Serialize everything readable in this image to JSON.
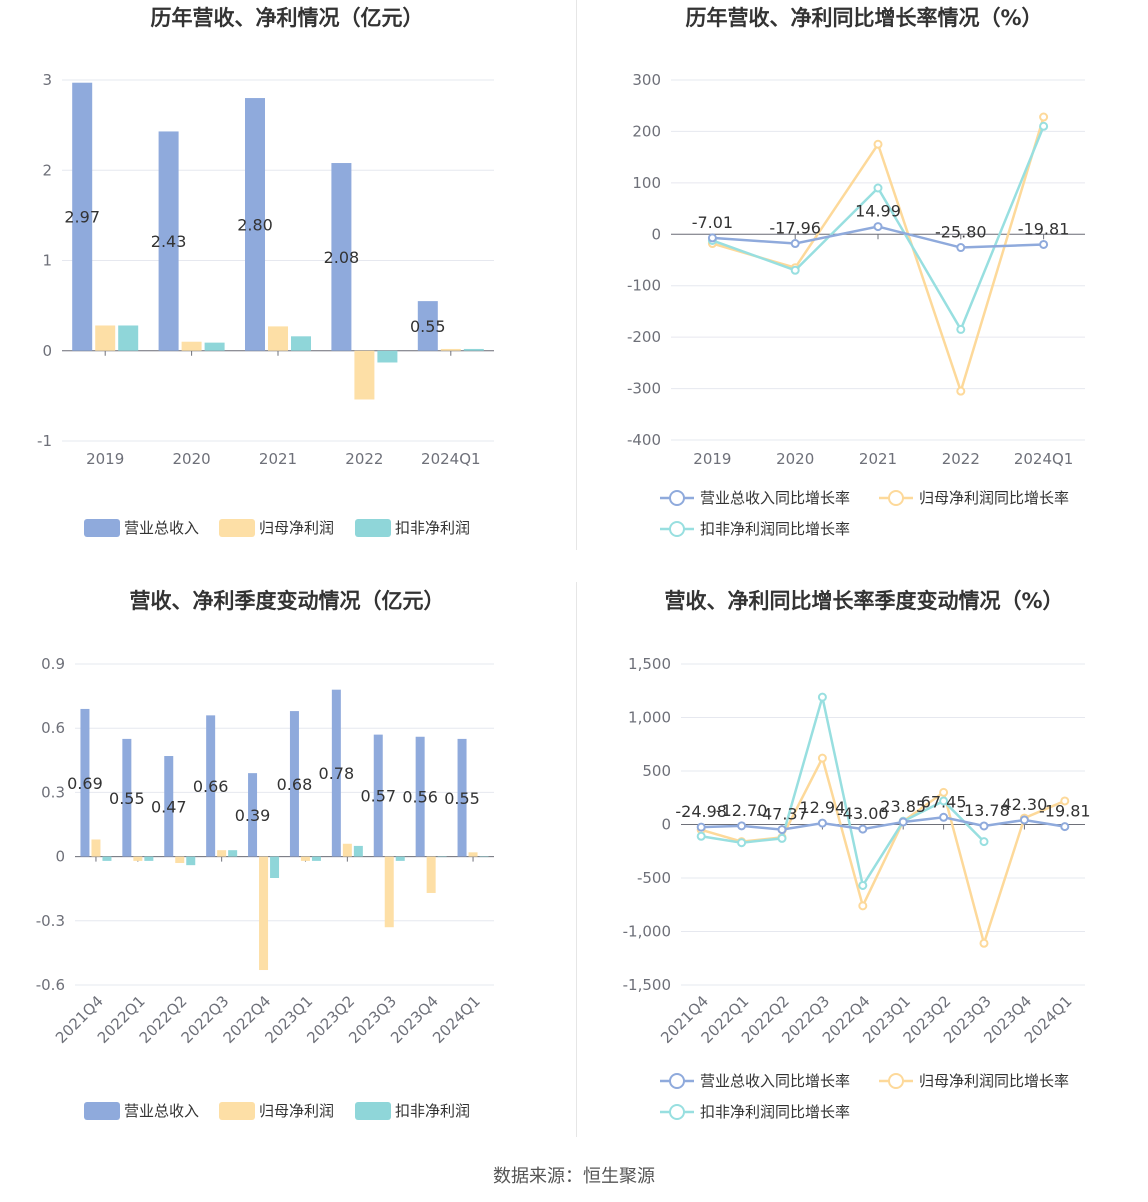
{
  "source": "数据来源：恒生聚源",
  "colors": {
    "revenue": "#8faadc",
    "parent_profit": "#fddfa6",
    "deducted_profit": "#8fd6d9",
    "rev_line": "#8faadc",
    "parent_line": "#fdd99a",
    "deducted_line": "#98dfe0"
  },
  "chart_data": [
    {
      "id": "annual_amount",
      "type": "bar",
      "title": "历年营收、净利情况（亿元）",
      "categories": [
        "2019",
        "2020",
        "2021",
        "2022",
        "2024Q1"
      ],
      "ylim": [
        -1,
        3
      ],
      "yticks": [
        "-1",
        "0",
        "1",
        "2",
        "3"
      ],
      "ytick_values": [
        -1,
        0,
        1,
        2,
        3
      ],
      "series": [
        {
          "name": "营业总收入",
          "values": [
            2.97,
            2.43,
            2.8,
            2.08,
            0.55
          ],
          "labels": [
            "2.97",
            "2.43",
            "2.80",
            "2.08",
            "0.55"
          ]
        },
        {
          "name": "归母净利润",
          "values": [
            0.28,
            0.1,
            0.27,
            -0.54,
            0.02
          ]
        },
        {
          "name": "扣非净利润",
          "values": [
            0.28,
            0.09,
            0.16,
            -0.13,
            0.02
          ]
        }
      ],
      "grid": true,
      "legend": "bottom"
    },
    {
      "id": "annual_growth",
      "type": "line",
      "title": "历年营收、净利同比增长率情况（%）",
      "categories": [
        "2019",
        "2020",
        "2021",
        "2022",
        "2024Q1"
      ],
      "ylim": [
        -400,
        300
      ],
      "yticks": [
        "-400",
        "-300",
        "-200",
        "-100",
        "0",
        "100",
        "200",
        "300"
      ],
      "ytick_values": [
        -400,
        -300,
        -200,
        -100,
        0,
        100,
        200,
        300
      ],
      "series": [
        {
          "name": "营业总收入同比增长率",
          "values": [
            -7.01,
            -17.96,
            14.99,
            -25.8,
            -19.81
          ],
          "labels": [
            "-7.01",
            "-17.96",
            "14.99",
            "-25.80",
            "-19.81"
          ]
        },
        {
          "name": "归母净利润同比增长率",
          "values": [
            -18,
            -65,
            175,
            -305,
            228
          ]
        },
        {
          "name": "扣非净利润同比增长率",
          "values": [
            -12,
            -70,
            90,
            -185,
            210
          ]
        }
      ],
      "grid": true,
      "legend": "bottom"
    },
    {
      "id": "quarterly_amount",
      "type": "bar",
      "title": "营收、净利季度变动情况（亿元）",
      "categories": [
        "2021Q4",
        "2022Q1",
        "2022Q2",
        "2022Q3",
        "2022Q4",
        "2023Q1",
        "2023Q2",
        "2023Q3",
        "2023Q4",
        "2024Q1"
      ],
      "ylim": [
        -0.6,
        0.9
      ],
      "yticks": [
        "-0.6",
        "-0.3",
        "0",
        "0.3",
        "0.6",
        "0.9"
      ],
      "ytick_values": [
        -0.6,
        -0.3,
        0,
        0.3,
        0.6,
        0.9
      ],
      "series": [
        {
          "name": "营业总收入",
          "values": [
            0.69,
            0.55,
            0.47,
            0.66,
            0.39,
            0.68,
            0.78,
            0.57,
            0.56,
            0.55
          ],
          "labels": [
            "0.69",
            "0.55",
            "0.47",
            "0.66",
            "0.39",
            "0.68",
            "0.78",
            "0.57",
            "0.56",
            "0.55"
          ]
        },
        {
          "name": "归母净利润",
          "values": [
            0.08,
            -0.02,
            -0.03,
            0.03,
            -0.53,
            -0.02,
            0.06,
            -0.33,
            -0.17,
            0.02
          ]
        },
        {
          "name": "扣非净利润",
          "values": [
            -0.02,
            -0.02,
            -0.04,
            0.03,
            -0.1,
            -0.02,
            0.05,
            -0.02,
            0.0,
            0.0
          ]
        }
      ],
      "grid": true,
      "legend": "bottom"
    },
    {
      "id": "quarterly_growth",
      "type": "line",
      "title": "营收、净利同比增长率季度变动情况（%）",
      "categories": [
        "2021Q4",
        "2022Q1",
        "2022Q2",
        "2022Q3",
        "2022Q4",
        "2023Q1",
        "2023Q2",
        "2023Q3",
        "2023Q4",
        "2024Q1"
      ],
      "ylim": [
        -1500,
        1500
      ],
      "yticks": [
        "-1,500",
        "-1,000",
        "-500",
        "0",
        "500",
        "1,000",
        "1,500"
      ],
      "ytick_values": [
        -1500,
        -1000,
        -500,
        0,
        500,
        1000,
        1500
      ],
      "series": [
        {
          "name": "营业总收入同比增长率",
          "values": [
            -24.98,
            -12.7,
            -47.37,
            12.94,
            -43.0,
            23.85,
            67.45,
            -13.78,
            42.3,
            -19.81
          ],
          "labels": [
            "-24.98",
            "-12.70",
            "-47.37",
            "12.94",
            "-43.00",
            "23.85",
            "67.45",
            "-13.78",
            "42.30",
            "-19.81"
          ]
        },
        {
          "name": "归母净利润同比增长率",
          "values": [
            -50,
            -160,
            -120,
            620,
            -760,
            30,
            300,
            -1110,
            60,
            220
          ]
        },
        {
          "name": "扣非净利润同比增长率",
          "values": [
            -110,
            -170,
            -130,
            1190,
            -570,
            30,
            220,
            -160,
            null,
            null
          ]
        }
      ],
      "grid": true,
      "legend": "bottom"
    }
  ]
}
